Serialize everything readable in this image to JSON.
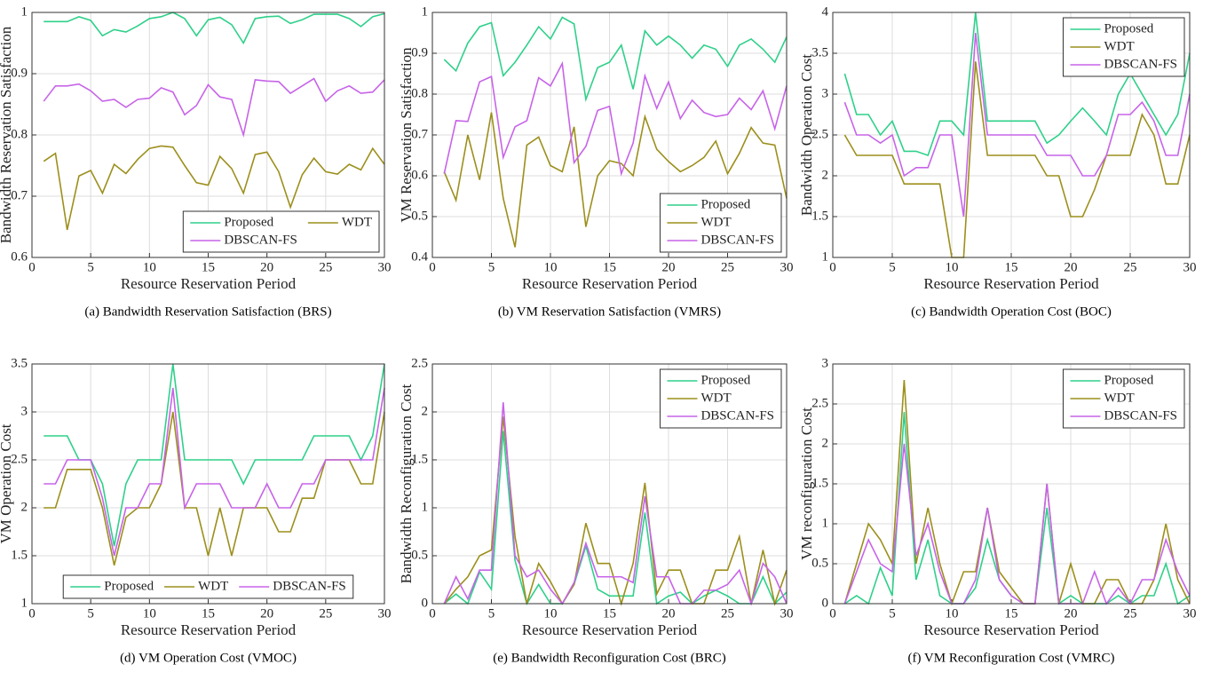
{
  "chart_data": [
    {
      "type": "line",
      "caption": "(a) Bandwidth Reservation Satisfaction (BRS)",
      "x_label": "Resource Reservation Period",
      "y_label": "Bandwidth Reservation Satisfaction",
      "x": [
        1,
        2,
        3,
        4,
        5,
        6,
        7,
        8,
        9,
        10,
        11,
        12,
        13,
        14,
        15,
        16,
        17,
        18,
        19,
        20,
        21,
        22,
        23,
        24,
        25,
        26,
        27,
        28,
        29,
        30
      ],
      "xlim": [
        0,
        30
      ],
      "xticks": [
        0,
        5,
        10,
        15,
        20,
        25,
        30
      ],
      "ylim": [
        0.6,
        1
      ],
      "yticks": [
        0.6,
        0.7,
        0.8,
        0.9,
        1
      ],
      "grid": true,
      "legend": "lower right",
      "legend_columns": 2,
      "series": [
        {
          "name": "Proposed",
          "color": "#2fd08a",
          "values": [
            0.985,
            0.985,
            0.985,
            0.993,
            0.987,
            0.962,
            0.972,
            0.968,
            0.978,
            0.99,
            0.993,
            1.0,
            0.99,
            0.962,
            0.988,
            0.992,
            0.98,
            0.95,
            0.99,
            0.993,
            0.994,
            0.982,
            0.988,
            0.997,
            0.997,
            0.997,
            0.99,
            0.977,
            0.993,
            0.998
          ]
        },
        {
          "name": "WDT",
          "color": "#9c8f1c",
          "values": [
            0.757,
            0.77,
            0.645,
            0.733,
            0.742,
            0.705,
            0.752,
            0.737,
            0.76,
            0.778,
            0.782,
            0.78,
            0.75,
            0.722,
            0.718,
            0.765,
            0.745,
            0.705,
            0.768,
            0.772,
            0.74,
            0.682,
            0.735,
            0.762,
            0.74,
            0.736,
            0.752,
            0.743,
            0.778,
            0.752
          ]
        },
        {
          "name": "DBSCAN-FS",
          "color": "#c764e8",
          "values": [
            0.855,
            0.88,
            0.88,
            0.883,
            0.872,
            0.855,
            0.858,
            0.845,
            0.858,
            0.86,
            0.877,
            0.87,
            0.833,
            0.848,
            0.882,
            0.862,
            0.858,
            0.8,
            0.89,
            0.888,
            0.887,
            0.868,
            0.88,
            0.892,
            0.855,
            0.872,
            0.88,
            0.868,
            0.87,
            0.89
          ]
        }
      ]
    },
    {
      "type": "line",
      "caption": "(b) VM Reservation Satisfaction (VMRS)",
      "x_label": "Resource Reservation Period",
      "y_label": "VM Reservation Satisfaction",
      "x": [
        1,
        2,
        3,
        4,
        5,
        6,
        7,
        8,
        9,
        10,
        11,
        12,
        13,
        14,
        15,
        16,
        17,
        18,
        19,
        20,
        21,
        22,
        23,
        24,
        25,
        26,
        27,
        28,
        29,
        30
      ],
      "xlim": [
        0,
        30
      ],
      "xticks": [
        0,
        5,
        10,
        15,
        20,
        25,
        30
      ],
      "ylim": [
        0.4,
        1
      ],
      "yticks": [
        0.4,
        0.5,
        0.6,
        0.7,
        0.8,
        0.9,
        1
      ],
      "grid": true,
      "legend": "lower right",
      "legend_columns": 1,
      "series": [
        {
          "name": "Proposed",
          "color": "#2fd08a",
          "values": [
            0.885,
            0.857,
            0.925,
            0.965,
            0.975,
            0.845,
            0.878,
            0.92,
            0.965,
            0.935,
            0.988,
            0.972,
            0.787,
            0.865,
            0.878,
            0.92,
            0.812,
            0.955,
            0.92,
            0.942,
            0.92,
            0.888,
            0.92,
            0.91,
            0.868,
            0.92,
            0.935,
            0.91,
            0.878,
            0.94
          ]
        },
        {
          "name": "WDT",
          "color": "#9c8f1c",
          "values": [
            0.61,
            0.54,
            0.7,
            0.59,
            0.755,
            0.545,
            0.425,
            0.675,
            0.695,
            0.625,
            0.61,
            0.72,
            0.475,
            0.6,
            0.637,
            0.63,
            0.6,
            0.745,
            0.665,
            0.635,
            0.61,
            0.625,
            0.645,
            0.685,
            0.605,
            0.655,
            0.718,
            0.68,
            0.675,
            0.545
          ]
        },
        {
          "name": "DBSCAN-FS",
          "color": "#c764e8",
          "values": [
            0.605,
            0.735,
            0.733,
            0.83,
            0.843,
            0.645,
            0.72,
            0.735,
            0.84,
            0.82,
            0.875,
            0.632,
            0.672,
            0.76,
            0.77,
            0.605,
            0.68,
            0.845,
            0.765,
            0.83,
            0.74,
            0.785,
            0.755,
            0.745,
            0.75,
            0.79,
            0.762,
            0.808,
            0.715,
            0.82
          ]
        }
      ]
    },
    {
      "type": "line",
      "caption": "(c) Bandwidth Operation Cost (BOC)",
      "x_label": "Resource Reservation Period",
      "y_label": "Bandwidth Operation Cost",
      "x": [
        1,
        2,
        3,
        4,
        5,
        6,
        7,
        8,
        9,
        10,
        11,
        12,
        13,
        14,
        15,
        16,
        17,
        18,
        19,
        20,
        21,
        22,
        23,
        24,
        25,
        26,
        27,
        28,
        29,
        30
      ],
      "xlim": [
        0,
        30
      ],
      "xticks": [
        0,
        5,
        10,
        15,
        20,
        25,
        30
      ],
      "ylim": [
        1,
        4
      ],
      "yticks": [
        1,
        1.5,
        2,
        2.5,
        3,
        3.5,
        4
      ],
      "grid": true,
      "legend": "upper right",
      "legend_columns": 1,
      "series": [
        {
          "name": "Proposed",
          "color": "#2fd08a",
          "values": [
            3.25,
            2.75,
            2.75,
            2.5,
            2.67,
            2.3,
            2.3,
            2.25,
            2.67,
            2.67,
            2.5,
            4.0,
            2.67,
            2.67,
            2.67,
            2.67,
            2.67,
            2.4,
            2.5,
            2.67,
            2.83,
            2.67,
            2.5,
            3.0,
            3.25,
            3.0,
            2.75,
            2.5,
            2.75,
            3.5
          ]
        },
        {
          "name": "WDT",
          "color": "#9c8f1c",
          "values": [
            2.5,
            2.25,
            2.25,
            2.25,
            2.25,
            1.9,
            1.9,
            1.9,
            1.9,
            1.0,
            1.0,
            3.4,
            2.25,
            2.25,
            2.25,
            2.25,
            2.25,
            2.0,
            2.0,
            1.5,
            1.5,
            1.83,
            2.25,
            2.25,
            2.25,
            2.75,
            2.5,
            1.9,
            1.9,
            2.5
          ]
        },
        {
          "name": "DBSCAN-FS",
          "color": "#c764e8",
          "values": [
            2.9,
            2.5,
            2.5,
            2.4,
            2.5,
            2.0,
            2.1,
            2.1,
            2.5,
            2.5,
            1.5,
            3.75,
            2.5,
            2.5,
            2.5,
            2.5,
            2.5,
            2.25,
            2.25,
            2.25,
            2.0,
            2.0,
            2.25,
            2.75,
            2.75,
            2.9,
            2.67,
            2.25,
            2.25,
            3.0
          ]
        }
      ]
    },
    {
      "type": "line",
      "caption": "(d) VM Operation Cost (VMOC)",
      "x_label": "Resource Reservation Period",
      "y_label": "VM Operation Cost",
      "x": [
        1,
        2,
        3,
        4,
        5,
        6,
        7,
        8,
        9,
        10,
        11,
        12,
        13,
        14,
        15,
        16,
        17,
        18,
        19,
        20,
        21,
        22,
        23,
        24,
        25,
        26,
        27,
        28,
        29,
        30
      ],
      "xlim": [
        0,
        30
      ],
      "xticks": [
        0,
        5,
        10,
        15,
        20,
        25,
        30
      ],
      "ylim": [
        1,
        3.5
      ],
      "yticks": [
        1,
        1.5,
        2,
        2.5,
        3,
        3.5
      ],
      "grid": true,
      "legend": "lower center",
      "legend_columns": 3,
      "series": [
        {
          "name": "Proposed",
          "color": "#2fd08a",
          "values": [
            2.75,
            2.75,
            2.75,
            2.5,
            2.5,
            2.25,
            1.6,
            2.25,
            2.5,
            2.5,
            2.5,
            3.5,
            2.5,
            2.5,
            2.5,
            2.5,
            2.5,
            2.25,
            2.5,
            2.5,
            2.5,
            2.5,
            2.5,
            2.75,
            2.75,
            2.75,
            2.75,
            2.5,
            2.75,
            3.5
          ]
        },
        {
          "name": "WDT",
          "color": "#9c8f1c",
          "values": [
            2.0,
            2.0,
            2.4,
            2.4,
            2.4,
            2.0,
            1.4,
            1.9,
            2.0,
            2.0,
            2.25,
            3.0,
            2.0,
            2.0,
            1.5,
            2.0,
            1.5,
            2.0,
            2.0,
            2.0,
            1.75,
            1.75,
            2.1,
            2.1,
            2.5,
            2.5,
            2.5,
            2.25,
            2.25,
            3.0
          ]
        },
        {
          "name": "DBSCAN-FS",
          "color": "#c764e8",
          "values": [
            2.25,
            2.25,
            2.5,
            2.5,
            2.5,
            2.1,
            1.5,
            2.0,
            2.0,
            2.25,
            2.25,
            3.25,
            2.0,
            2.25,
            2.25,
            2.25,
            2.0,
            2.0,
            2.0,
            2.25,
            2.0,
            2.0,
            2.25,
            2.25,
            2.5,
            2.5,
            2.5,
            2.5,
            2.5,
            3.25
          ]
        }
      ]
    },
    {
      "type": "line",
      "caption": "(e) Bandwidth Reconfiguration Cost (BRC)",
      "x_label": "Resource Reservation Period",
      "y_label": "Bandwidth Reconfiguration Cost",
      "x": [
        1,
        2,
        3,
        4,
        5,
        6,
        7,
        8,
        9,
        10,
        11,
        12,
        13,
        14,
        15,
        16,
        17,
        18,
        19,
        20,
        21,
        22,
        23,
        24,
        25,
        26,
        27,
        28,
        29,
        30
      ],
      "xlim": [
        0,
        30
      ],
      "xticks": [
        0,
        5,
        10,
        15,
        20,
        25,
        30
      ],
      "ylim": [
        0,
        2.5
      ],
      "yticks": [
        0,
        0.5,
        1,
        1.5,
        2,
        2.5
      ],
      "grid": true,
      "legend": "upper right",
      "legend_columns": 1,
      "series": [
        {
          "name": "Proposed",
          "color": "#2fd08a",
          "values": [
            0,
            0.1,
            0,
            0.33,
            0.15,
            1.8,
            0.45,
            0,
            0.2,
            0,
            0,
            0.2,
            0.6,
            0.15,
            0.08,
            0.08,
            0.08,
            0.95,
            0,
            0.08,
            0.12,
            0,
            0.08,
            0.14,
            0.08,
            0,
            0,
            0.28,
            0,
            0.12
          ]
        },
        {
          "name": "WDT",
          "color": "#9c8f1c",
          "values": [
            0,
            0.15,
            0.28,
            0.5,
            0.56,
            1.95,
            0.7,
            0,
            0.42,
            0.23,
            0,
            0.2,
            0.84,
            0.42,
            0.42,
            0,
            0.42,
            1.26,
            0.1,
            0.35,
            0.35,
            0,
            0,
            0.35,
            0.35,
            0.7,
            0,
            0.56,
            0,
            0.35
          ]
        },
        {
          "name": "DBSCAN-FS",
          "color": "#c764e8",
          "values": [
            0,
            0.28,
            0.05,
            0.35,
            0.35,
            2.1,
            0.5,
            0.28,
            0.35,
            0.15,
            0,
            0.22,
            0.63,
            0.28,
            0.28,
            0.28,
            0.22,
            1.12,
            0.28,
            0.28,
            0,
            0,
            0.14,
            0.14,
            0.2,
            0.35,
            0,
            0.42,
            0.28,
            0
          ]
        }
      ]
    },
    {
      "type": "line",
      "caption": "(f) VM Reconfiguration Cost (VMRC)",
      "x_label": "Resource Reservation Period",
      "y_label": "VM reconfiguration Cost",
      "x": [
        1,
        2,
        3,
        4,
        5,
        6,
        7,
        8,
        9,
        10,
        11,
        12,
        13,
        14,
        15,
        16,
        17,
        18,
        19,
        20,
        21,
        22,
        23,
        24,
        25,
        26,
        27,
        28,
        29,
        30
      ],
      "xlim": [
        0,
        30
      ],
      "xticks": [
        0,
        5,
        10,
        15,
        20,
        25,
        30
      ],
      "ylim": [
        0,
        3
      ],
      "yticks": [
        0,
        0.5,
        1,
        1.5,
        2,
        2.5,
        3
      ],
      "grid": true,
      "legend": "upper right",
      "legend_columns": 1,
      "series": [
        {
          "name": "Proposed",
          "color": "#2fd08a",
          "values": [
            0,
            0.1,
            0,
            0.45,
            0.1,
            2.4,
            0.3,
            0.8,
            0.1,
            0,
            0,
            0.2,
            0.8,
            0.3,
            0.1,
            0,
            0,
            1.2,
            0,
            0.1,
            0,
            0,
            0,
            0.1,
            0,
            0.1,
            0.1,
            0.5,
            0,
            0.1
          ]
        },
        {
          "name": "WDT",
          "color": "#9c8f1c",
          "values": [
            0,
            0.5,
            1.0,
            0.8,
            0.5,
            2.8,
            0.5,
            1.2,
            0.5,
            0,
            0.4,
            0.4,
            1.2,
            0.4,
            0.2,
            0,
            0,
            1.5,
            0,
            0.5,
            0,
            0,
            0.3,
            0.3,
            0,
            0,
            0.3,
            1.0,
            0.3,
            0
          ]
        },
        {
          "name": "DBSCAN-FS",
          "color": "#c764e8",
          "values": [
            0,
            0.4,
            0.8,
            0.5,
            0.4,
            2.0,
            0.6,
            1.0,
            0.4,
            0,
            0,
            0.3,
            1.2,
            0.3,
            0.1,
            0,
            0,
            1.5,
            0,
            0,
            0,
            0.4,
            0,
            0.2,
            0,
            0.3,
            0.3,
            0.8,
            0.4,
            0.1
          ]
        }
      ]
    }
  ]
}
